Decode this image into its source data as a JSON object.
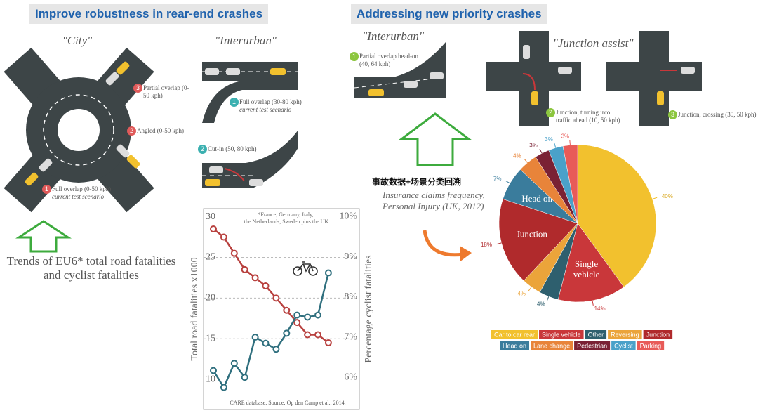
{
  "headers": {
    "left": "Improve robustness in rear-end crashes",
    "right": "Addressing new priority crashes"
  },
  "scenarios": [
    {
      "title": "\"City\"",
      "items": [
        {
          "number": 3,
          "label": "Partial overlap (0-50 kph)"
        },
        {
          "number": 2,
          "label": "Angled (0-50 kph)"
        },
        {
          "number": 1,
          "label": "Full overlap (0-50 kph)",
          "note": "current test scenario"
        }
      ]
    },
    {
      "title": "\"Interurban\"",
      "items": [
        {
          "number": 1,
          "label": "Full overlap (30-80 kph)",
          "note": "current test scenario"
        },
        {
          "number": 2,
          "label": "Cut-in (50, 80 kph)"
        }
      ]
    },
    {
      "title": "\"Interurban\"",
      "items": [
        {
          "number": 1,
          "label": "Partial overlap head-on (40, 64 kph)"
        }
      ]
    },
    {
      "title": "\"Junction assist\"",
      "items": [
        {
          "number": 2,
          "label": "Junction, turning into traffic ahead (10, 50 kph)"
        },
        {
          "number": 3,
          "label": "Junction, crossing (30, 50 kph)"
        }
      ]
    }
  ],
  "notes": {
    "trends": "Trends of EU6* total road fatalities and cyclist fatalities",
    "chinese": "事故数据+场景分类回溯",
    "insurance": "Insurance claims frequency, Personal Injury (UK, 2012)"
  },
  "chart_data": [
    {
      "type": "line",
      "note": "*France, Germany, Italy, the Netherlands, Sweden plus the UK",
      "source": "CARE database. Source: Op den Camp et al., 2014.",
      "ylabel": "Total road fatalities x1000",
      "y2label": "Percentage cyclist fatalities",
      "categories": [
        null,
        null,
        null,
        null,
        null,
        null,
        null,
        null,
        null,
        null,
        null,
        null
      ],
      "series": [
        {
          "color": "#b8413f",
          "values": [
            28.5,
            27.5,
            25.5,
            23.5,
            22.5,
            21.5,
            20,
            18.5,
            17,
            15.5,
            15.5,
            14.5
          ]
        },
        {
          "color": "#2f6f7e",
          "axis": "y2",
          "values": [
            6.17,
            5.75,
            6.35,
            6.0,
            7.0,
            6.85,
            6.7,
            7.1,
            7.55,
            7.5,
            7.55,
            8.6
          ]
        }
      ],
      "ylim": [
        6.3,
        31
      ],
      "yticks": [
        10,
        15,
        20,
        25,
        30
      ],
      "y2lim": [
        5.2,
        10.2
      ],
      "y2ticks": [
        {
          "value": 6,
          "label": "6%"
        },
        {
          "value": 7,
          "label": "7%"
        },
        {
          "value": 8,
          "label": "8%"
        },
        {
          "value": 9,
          "label": "9%"
        },
        {
          "value": 10,
          "label": "10%"
        }
      ],
      "grid": true
    },
    {
      "type": "pie",
      "categories": [
        "Car to car rear",
        "Single vehicle",
        "Other",
        "Reversing",
        "Junction",
        "Head on",
        "Lane change",
        "Pedestrian",
        "Cyclist",
        "Parking"
      ],
      "values": [
        40,
        14,
        4,
        4,
        18,
        7,
        4,
        3,
        3,
        3
      ],
      "value_labels": [
        "40%",
        "14%",
        "4%",
        "4%",
        "18%",
        "7%",
        "4%",
        "3%",
        "3%",
        "3%"
      ],
      "colors": [
        "#f2c12e",
        "#c9373a",
        "#2e5f6e",
        "#eba43a",
        "#b02a2c",
        "#3a7c9c",
        "#e8843a",
        "#7a2134",
        "#4aa1c9",
        "#e85b58"
      ]
    }
  ]
}
